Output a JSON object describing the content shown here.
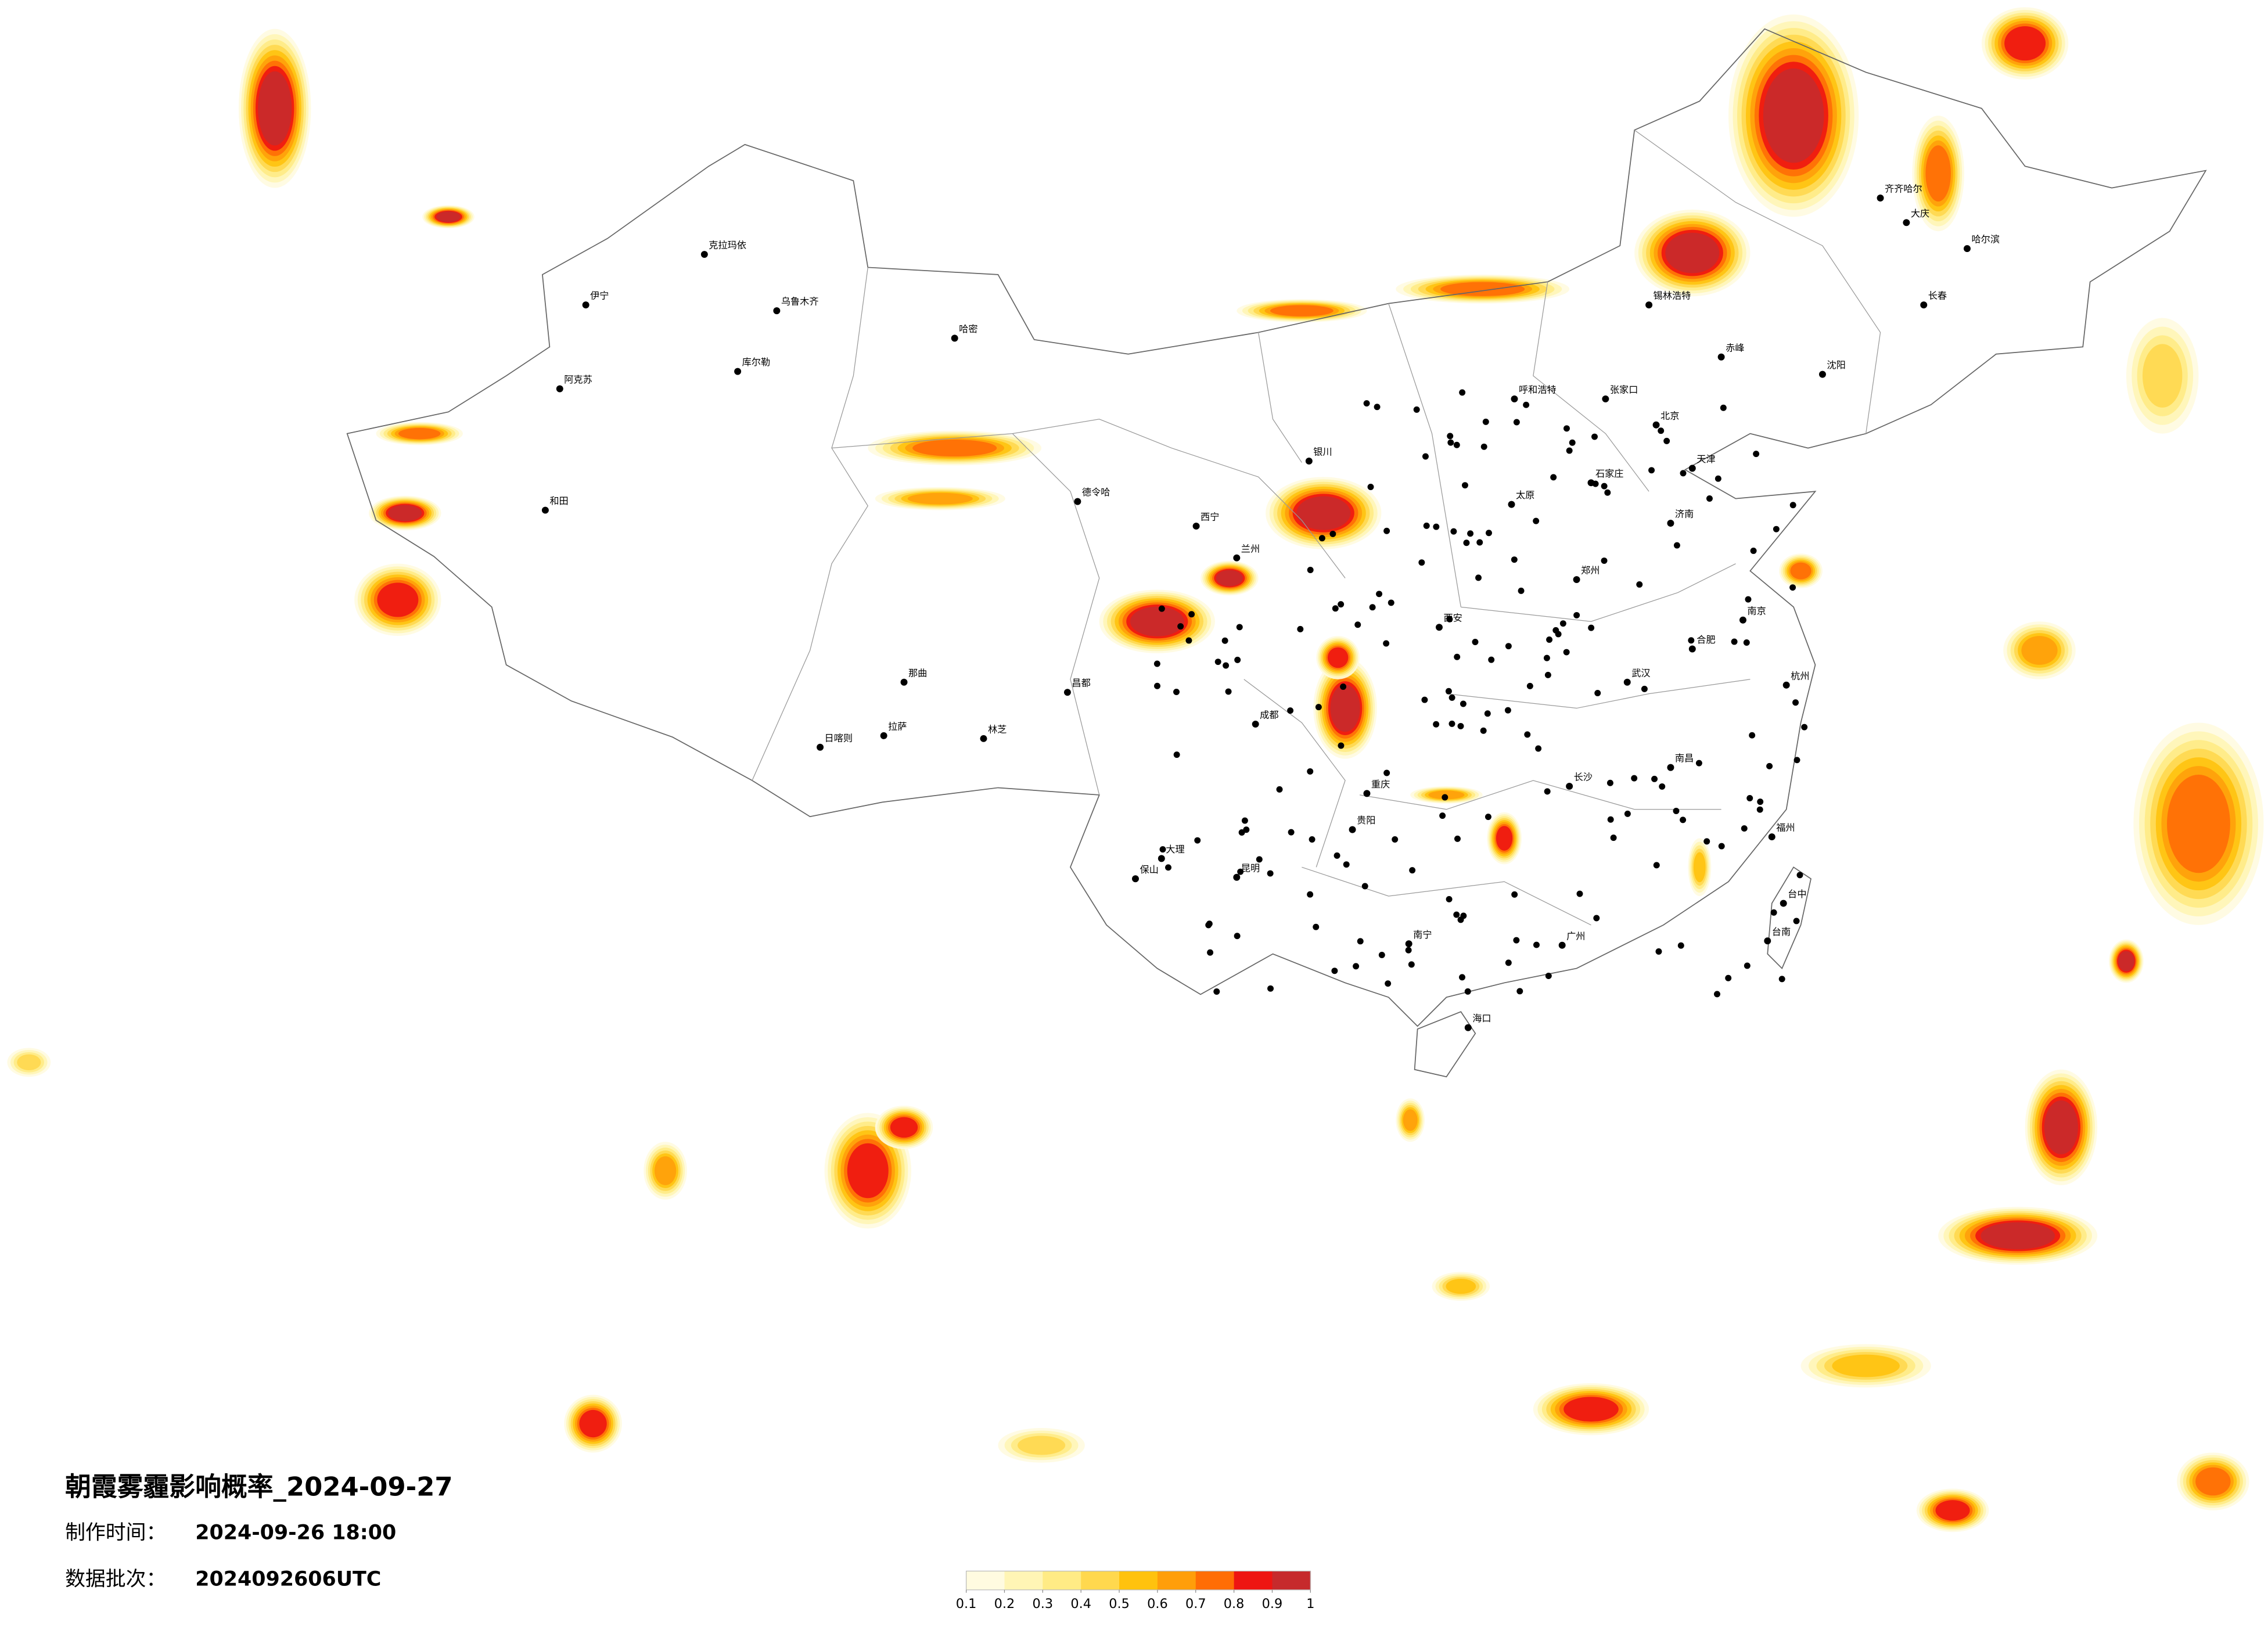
{
  "title": "朝霞雾霾影响概率_2024-09-27",
  "info": [
    {
      "label": "制作时间：",
      "value": "2024-09-26 18:00"
    },
    {
      "label": "数据批次：",
      "value": "2024092606UTC"
    }
  ],
  "legend": {
    "colors": [
      "#fffbe0",
      "#fff5b5",
      "#ffeb85",
      "#ffd84e",
      "#ffc20e",
      "#ff9e0a",
      "#ff6d05",
      "#ee1512",
      "#c62a2c"
    ],
    "ticks": [
      0.1,
      0.2,
      0.3,
      0.4,
      0.5,
      0.6,
      0.7,
      0.8,
      0.9,
      1
    ]
  },
  "cities": [
    "克拉玛依",
    "乌鲁木齐",
    "伊宁",
    "阿克苏",
    "和田",
    "哈密",
    "库尔勒",
    "日喀则",
    "拉萨",
    "林芝",
    "那曲",
    "昌都",
    "德令哈",
    "西宁",
    "兰州",
    "银川",
    "呼和浩特",
    "北京",
    "天津",
    "石家庄",
    "太原",
    "济南",
    "郑州",
    "西安",
    "成都",
    "重庆",
    "武汉",
    "长沙",
    "南昌",
    "合肥",
    "南京",
    "杭州",
    "福州",
    "广州",
    "南宁",
    "海口",
    "昆明",
    "贵阳",
    "大理",
    "保山",
    "台中",
    "台南",
    "沈阳",
    "长春",
    "哈尔滨",
    "齐齐哈尔",
    "大庆",
    "锡林浩特",
    "张家口",
    "赤峰"
  ]
}
